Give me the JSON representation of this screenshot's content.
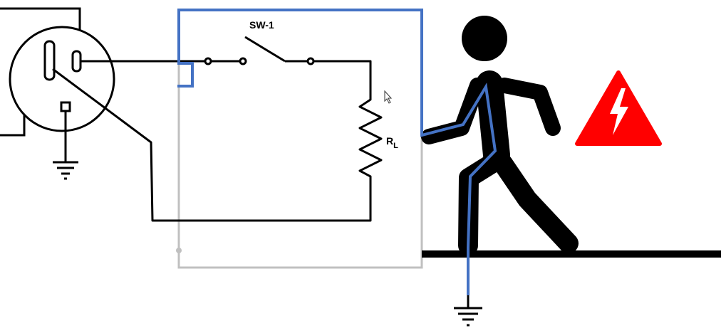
{
  "labels": {
    "switch": "SW-1",
    "load_main": "R",
    "load_sub": "L"
  },
  "colors": {
    "wire": "#000000",
    "fault_path": "#4472c4",
    "enclosure": "#c0c0c0",
    "warning": "#ff0000",
    "figure": "#000000"
  },
  "icons": {
    "outlet": "outlet-icon",
    "ground": "ground-icon",
    "person": "walking-person-icon",
    "warning": "high-voltage-warning-icon",
    "cursor": "mouse-cursor-icon"
  }
}
